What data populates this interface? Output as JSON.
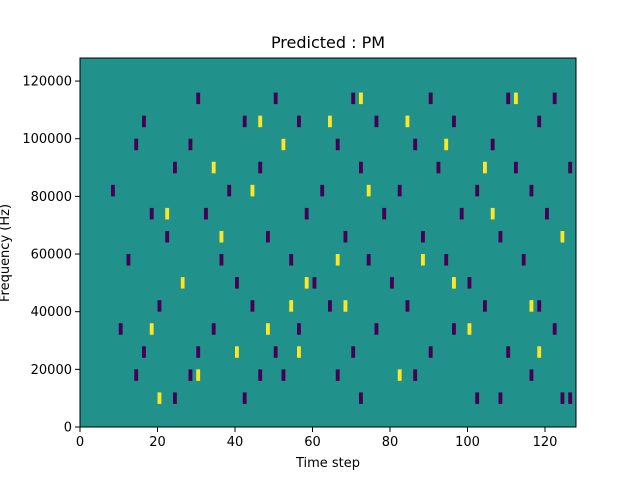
{
  "chart_data": {
    "type": "heatmap",
    "title": "Predicted : PM",
    "xlabel": "Time step",
    "ylabel": "Frequency (Hz)",
    "xlim": [
      0,
      128
    ],
    "ylim": [
      0,
      128000
    ],
    "x_ticks": [
      0,
      20,
      40,
      60,
      80,
      100,
      120
    ],
    "x_tick_labels": [
      "0",
      "20",
      "40",
      "60",
      "80",
      "100",
      "120"
    ],
    "y_ticks": [
      0,
      20000,
      40000,
      60000,
      80000,
      100000,
      120000
    ],
    "y_tick_labels": [
      "0",
      "20000",
      "40000",
      "60000",
      "80000",
      "100000",
      "120000"
    ],
    "grid": false,
    "legend": "none",
    "colormap": "viridis",
    "background_value": 0,
    "colors": {
      "background": "#21918c",
      "low": "#440154",
      "high": "#fde725"
    },
    "bin_height_hz": 4000,
    "low_cells": [
      [
        24,
        2
      ],
      [
        42,
        2
      ],
      [
        72,
        2
      ],
      [
        102,
        2
      ],
      [
        108,
        2
      ],
      [
        124,
        2
      ],
      [
        126,
        2
      ],
      [
        14,
        4
      ],
      [
        28,
        4
      ],
      [
        46,
        4
      ],
      [
        52,
        4
      ],
      [
        66,
        4
      ],
      [
        86,
        4
      ],
      [
        116,
        4
      ],
      [
        16,
        6
      ],
      [
        30,
        6
      ],
      [
        50,
        6
      ],
      [
        70,
        6
      ],
      [
        90,
        6
      ],
      [
        110,
        6
      ],
      [
        10,
        8
      ],
      [
        34,
        8
      ],
      [
        56,
        8
      ],
      [
        76,
        8
      ],
      [
        96,
        8
      ],
      [
        122,
        8
      ],
      [
        20,
        10
      ],
      [
        44,
        10
      ],
      [
        64,
        10
      ],
      [
        84,
        10
      ],
      [
        104,
        10
      ],
      [
        118,
        10
      ],
      [
        26,
        12
      ],
      [
        40,
        12
      ],
      [
        60,
        12
      ],
      [
        80,
        12
      ],
      [
        100,
        12
      ],
      [
        12,
        14
      ],
      [
        36,
        14
      ],
      [
        54,
        14
      ],
      [
        74,
        14
      ],
      [
        94,
        14
      ],
      [
        114,
        14
      ],
      [
        22,
        16
      ],
      [
        48,
        16
      ],
      [
        68,
        16
      ],
      [
        88,
        16
      ],
      [
        108,
        16
      ],
      [
        124,
        16
      ],
      [
        18,
        18
      ],
      [
        32,
        18
      ],
      [
        58,
        18
      ],
      [
        78,
        18
      ],
      [
        98,
        18
      ],
      [
        120,
        18
      ],
      [
        8,
        20
      ],
      [
        38,
        20
      ],
      [
        62,
        20
      ],
      [
        82,
        20
      ],
      [
        102,
        20
      ],
      [
        116,
        20
      ],
      [
        24,
        22
      ],
      [
        46,
        22
      ],
      [
        72,
        22
      ],
      [
        92,
        22
      ],
      [
        112,
        22
      ],
      [
        126,
        22
      ],
      [
        14,
        24
      ],
      [
        28,
        24
      ],
      [
        52,
        24
      ],
      [
        66,
        24
      ],
      [
        86,
        24
      ],
      [
        106,
        24
      ],
      [
        16,
        26
      ],
      [
        42,
        26
      ],
      [
        56,
        26
      ],
      [
        76,
        26
      ],
      [
        96,
        26
      ],
      [
        118,
        26
      ],
      [
        30,
        28
      ],
      [
        50,
        28
      ],
      [
        70,
        28
      ],
      [
        90,
        28
      ],
      [
        110,
        28
      ],
      [
        122,
        28
      ]
    ],
    "high_cells": [
      [
        20,
        2
      ],
      [
        30,
        4
      ],
      [
        40,
        6
      ],
      [
        48,
        8
      ],
      [
        54,
        10
      ],
      [
        58,
        12
      ],
      [
        66,
        14
      ],
      [
        18,
        8
      ],
      [
        26,
        12
      ],
      [
        36,
        16
      ],
      [
        44,
        20
      ],
      [
        52,
        24
      ],
      [
        64,
        26
      ],
      [
        72,
        28
      ],
      [
        22,
        18
      ],
      [
        34,
        22
      ],
      [
        46,
        26
      ],
      [
        56,
        6
      ],
      [
        68,
        10
      ],
      [
        74,
        20
      ],
      [
        82,
        4
      ],
      [
        88,
        14
      ],
      [
        94,
        24
      ],
      [
        100,
        8
      ],
      [
        106,
        18
      ],
      [
        112,
        28
      ],
      [
        118,
        6
      ],
      [
        124,
        16
      ],
      [
        84,
        26
      ],
      [
        96,
        12
      ],
      [
        104,
        22
      ],
      [
        116,
        10
      ]
    ]
  }
}
